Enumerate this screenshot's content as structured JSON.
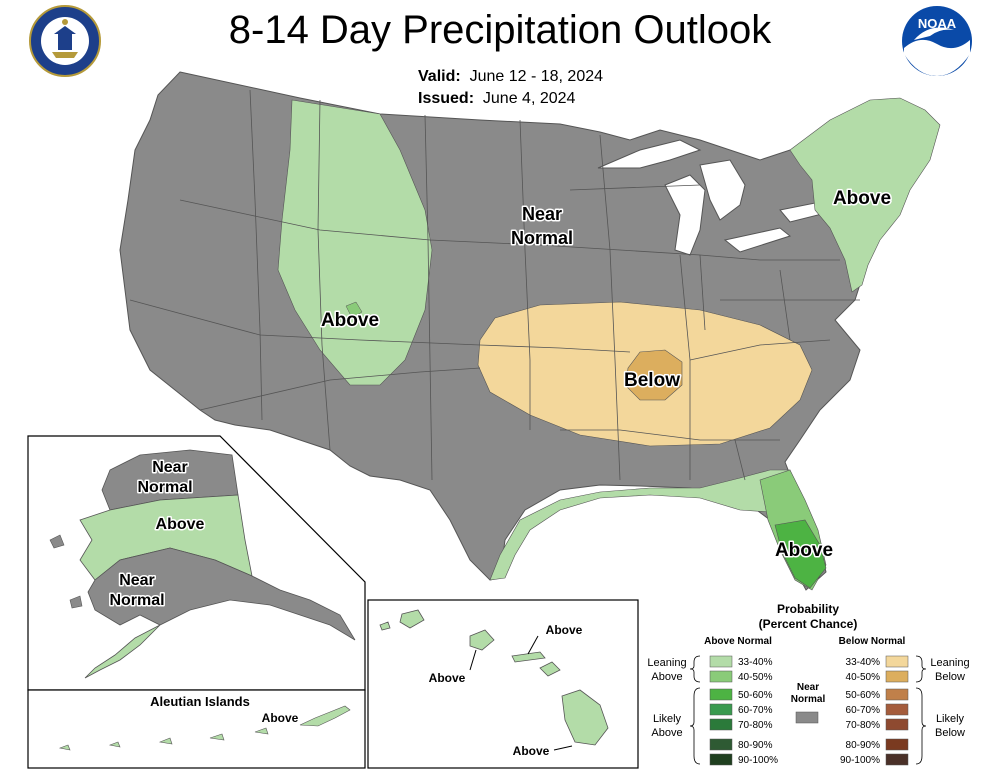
{
  "header": {
    "title": "8-14 Day Precipitation Outlook",
    "valid_label": "Valid:",
    "valid_value": "June 12 - 18, 2024",
    "issued_label": "Issued:",
    "issued_value": "June 4, 2024"
  },
  "logos": {
    "left": "department-of-commerce-seal",
    "right": "noaa-logo",
    "noaa_text": "NOAA"
  },
  "colors": {
    "near_normal": "#8a8a8a",
    "above_33_40": "#b3dca8",
    "above_40_50": "#8acb79",
    "above_50_60": "#4db343",
    "above_60_70": "#3a9a4f",
    "above_70_80": "#2b7a3a",
    "above_80_90": "#2e5a33",
    "above_90_100": "#1f3f1f",
    "below_33_40": "#f3d79b",
    "below_40_50": "#dcae5e",
    "below_50_60": "#c0804a",
    "below_60_70": "#a45c3c",
    "below_70_80": "#8e4a30",
    "below_80_90": "#7a3a20",
    "below_90_100": "#4a3028",
    "water": "#ffffff",
    "border": "#555555"
  },
  "conus_labels": {
    "near_normal_line1": "Near",
    "near_normal_line2": "Normal",
    "above_west": "Above",
    "above_northeast": "Above",
    "below_central": "Below",
    "above_florida": "Above"
  },
  "alaska": {
    "near_normal_north_line1": "Near",
    "near_normal_north_line2": "Normal",
    "above_middle": "Above",
    "near_normal_south_line1": "Near",
    "near_normal_south_line2": "Normal",
    "aleutian_title": "Aleutian Islands",
    "aleutian_above": "Above"
  },
  "hawaii": {
    "above_1": "Above",
    "above_2": "Above",
    "above_3": "Above"
  },
  "legend": {
    "title_line1": "Probability",
    "title_line2": "(Percent Chance)",
    "above_header": "Above Normal",
    "below_header": "Below Normal",
    "near_normal_line1": "Near",
    "near_normal_line2": "Normal",
    "leaning_above_line1": "Leaning",
    "leaning_above_line2": "Above",
    "likely_above_line1": "Likely",
    "likely_above_line2": "Above",
    "leaning_below_line1": "Leaning",
    "leaning_below_line2": "Below",
    "likely_below_line1": "Likely",
    "likely_below_line2": "Below",
    "above_ranges": [
      "33-40%",
      "40-50%",
      "50-60%",
      "60-70%",
      "70-80%",
      "80-90%",
      "90-100%"
    ],
    "below_ranges": [
      "33-40%",
      "40-50%",
      "50-60%",
      "60-70%",
      "70-80%",
      "80-90%",
      "90-100%"
    ]
  }
}
